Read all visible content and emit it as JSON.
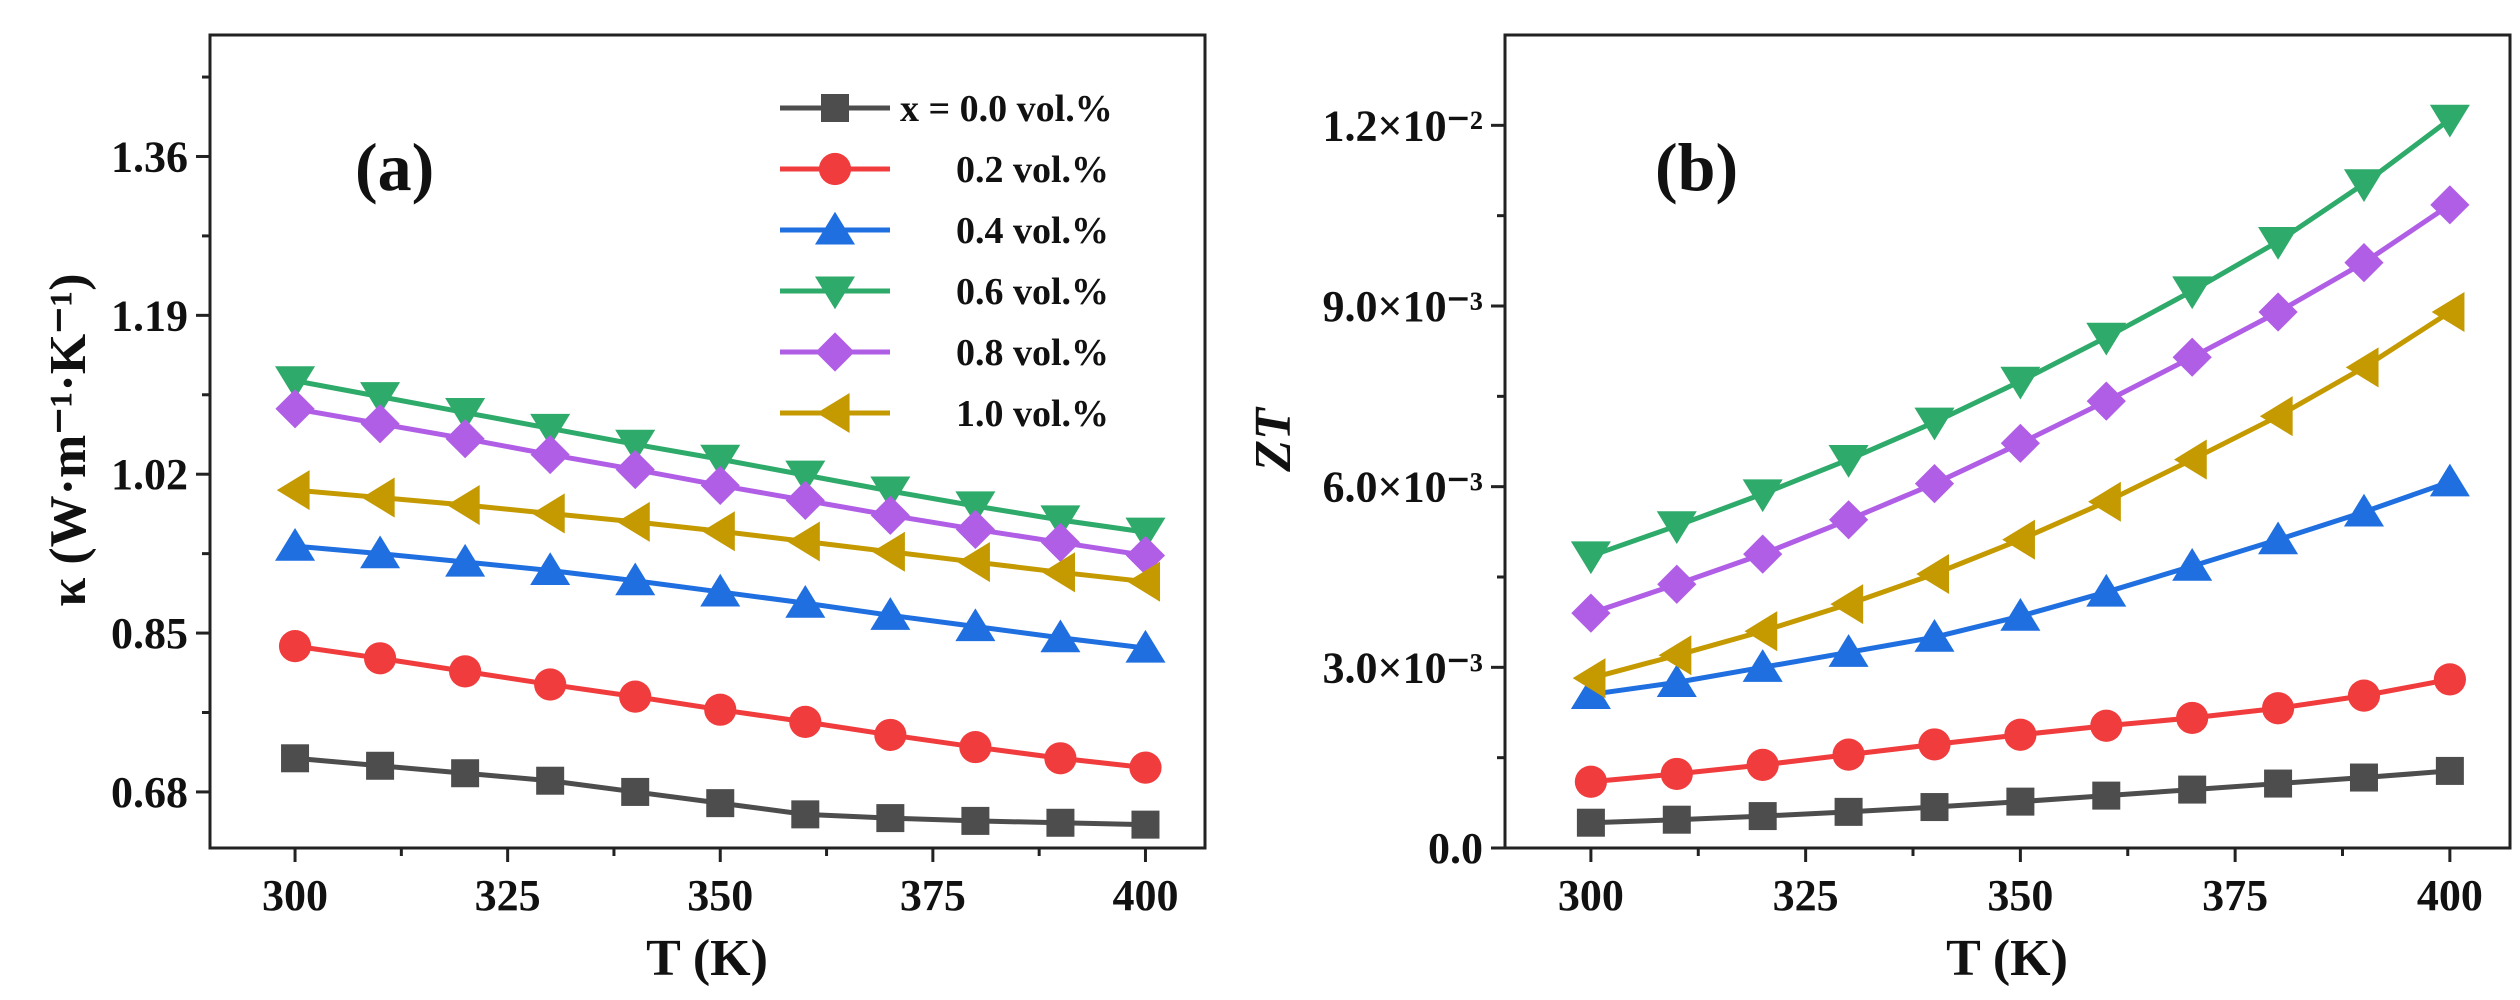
{
  "chart_data": [
    {
      "type": "line",
      "panel_label": "(a)",
      "xlabel": "T (K)",
      "ylabel": "κ (W·m⁻¹·K⁻¹)",
      "x": [
        300,
        310,
        320,
        330,
        340,
        350,
        360,
        370,
        380,
        390,
        400
      ],
      "xlim": [
        290,
        407
      ],
      "ylim": [
        0.62,
        1.49
      ],
      "xticks": [
        300,
        325,
        350,
        375,
        400
      ],
      "xtick_labels": [
        "300",
        "325",
        "350",
        "375",
        "400"
      ],
      "yticks": [
        0.68,
        0.85,
        1.02,
        1.19,
        1.36
      ],
      "ytick_labels": [
        "0.68",
        "0.85",
        "1.02",
        "1.19",
        "1.36"
      ],
      "legend": {
        "placement": "top-right",
        "entries": [
          "x = 0.0 vol.%",
          "0.2 vol.%",
          "0.4 vol.%",
          "0.6 vol.%",
          "0.8 vol.%",
          "1.0 vol.%"
        ]
      },
      "series": [
        {
          "name": "x = 0.0 vol.%",
          "color": "#4d4d4d",
          "marker": "square",
          "values": [
            0.716,
            0.708,
            0.7,
            0.692,
            0.68,
            0.668,
            0.656,
            0.652,
            0.649,
            0.647,
            0.645
          ]
        },
        {
          "name": "0.2 vol.%",
          "color": "#f03c3c",
          "marker": "circle",
          "values": [
            0.836,
            0.823,
            0.809,
            0.795,
            0.782,
            0.768,
            0.755,
            0.741,
            0.728,
            0.716,
            0.706
          ]
        },
        {
          "name": "0.4 vol.%",
          "color": "#1f6fe0",
          "marker": "triangle-up",
          "values": [
            0.943,
            0.935,
            0.926,
            0.917,
            0.906,
            0.894,
            0.882,
            0.869,
            0.857,
            0.845,
            0.834
          ]
        },
        {
          "name": "0.6 vol.%",
          "color": "#2eaa6a",
          "marker": "triangle-down",
          "values": [
            1.12,
            1.103,
            1.086,
            1.069,
            1.052,
            1.036,
            1.019,
            1.002,
            0.986,
            0.971,
            0.958
          ]
        },
        {
          "name": "0.8 vol.%",
          "color": "#b05ee6",
          "marker": "diamond",
          "values": [
            1.09,
            1.074,
            1.058,
            1.041,
            1.025,
            1.008,
            0.992,
            0.976,
            0.961,
            0.947,
            0.933
          ]
        },
        {
          "name": "1.0 vol.%",
          "color": "#c49a00",
          "marker": "triangle-left",
          "values": [
            1.003,
            0.995,
            0.987,
            0.978,
            0.969,
            0.959,
            0.948,
            0.937,
            0.926,
            0.915,
            0.905
          ]
        }
      ]
    },
    {
      "type": "line",
      "panel_label": "(b)",
      "xlabel": "T (K)",
      "ylabel": "ZT",
      "x": [
        300,
        310,
        320,
        330,
        340,
        350,
        360,
        370,
        380,
        390,
        400
      ],
      "xlim": [
        290,
        407
      ],
      "ylim": [
        0.0,
        0.0135
      ],
      "xticks": [
        300,
        325,
        350,
        375,
        400
      ],
      "xtick_labels": [
        "300",
        "325",
        "350",
        "375",
        "400"
      ],
      "yticks": [
        0.0,
        0.003,
        0.006,
        0.009,
        0.012
      ],
      "ytick_labels": [
        "0.0",
        "3.0×10⁻³",
        "6.0×10⁻³",
        "9.0×10⁻³",
        "1.2×10⁻²"
      ],
      "series": [
        {
          "name": "x = 0.0 vol.%",
          "color": "#4d4d4d",
          "marker": "square",
          "values": [
            0.00042,
            0.00047,
            0.00053,
            0.0006,
            0.00068,
            0.00077,
            0.00087,
            0.00097,
            0.00107,
            0.00117,
            0.00128
          ]
        },
        {
          "name": "0.2 vol.%",
          "color": "#f03c3c",
          "marker": "circle",
          "values": [
            0.0011,
            0.00123,
            0.00138,
            0.00155,
            0.00172,
            0.00188,
            0.00203,
            0.00216,
            0.00232,
            0.00253,
            0.0028
          ]
        },
        {
          "name": "0.4 vol.%",
          "color": "#1f6fe0",
          "marker": "triangle-up",
          "values": [
            0.00255,
            0.00275,
            0.003,
            0.00325,
            0.0035,
            0.00385,
            0.00425,
            0.00468,
            0.00512,
            0.00558,
            0.00608
          ]
        },
        {
          "name": "0.6 vol.%",
          "color": "#2eaa6a",
          "marker": "triangle-down",
          "values": [
            0.00485,
            0.00535,
            0.00588,
            0.00645,
            0.00707,
            0.00775,
            0.00848,
            0.00925,
            0.01007,
            0.01103,
            0.0121
          ]
        },
        {
          "name": "0.8 vol.%",
          "color": "#b05ee6",
          "marker": "diamond",
          "values": [
            0.0039,
            0.00438,
            0.00488,
            0.00545,
            0.00605,
            0.00672,
            0.00742,
            0.00815,
            0.0089,
            0.00972,
            0.01068
          ]
        },
        {
          "name": "1.0 vol.%",
          "color": "#c49a00",
          "marker": "triangle-left",
          "values": [
            0.00282,
            0.0032,
            0.0036,
            0.00405,
            0.00455,
            0.00512,
            0.00575,
            0.00645,
            0.00717,
            0.00798,
            0.0089
          ]
        }
      ]
    }
  ]
}
